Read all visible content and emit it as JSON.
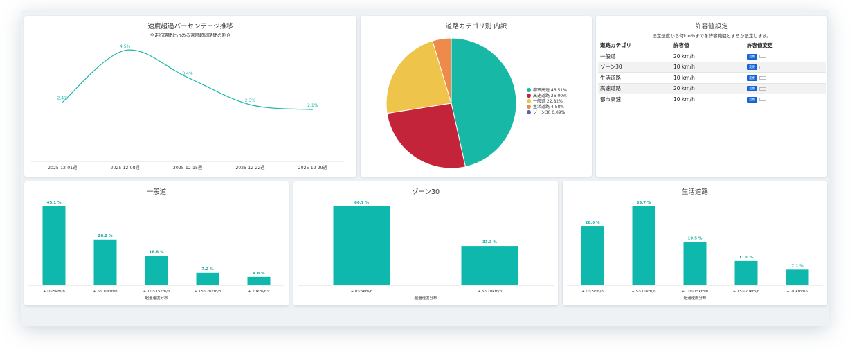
{
  "trend": {
    "title": "速度超過パーセンテージ推移",
    "subtitle": "全走行時間に占める速度超過時間の割合",
    "color": "#1ab8a8",
    "chart_data": {
      "type": "line",
      "x": [
        "2025-12-01週",
        "2025-12-08週",
        "2025-12-15週",
        "2025-12-22週",
        "2025-12-29週"
      ],
      "values": [
        2.4,
        4.5,
        3.4,
        2.3,
        2.1
      ],
      "labels": [
        "2.4%",
        "4.5%",
        "3.4%",
        "2.3%",
        "2.1%"
      ],
      "ylim": [
        0,
        5.0
      ]
    }
  },
  "pie": {
    "title": "道路カテゴリ別 内訳",
    "chart_data": {
      "type": "pie",
      "slices": [
        {
          "label": "都市高速 46.51%",
          "value": 46.51,
          "color": "#17b8a6"
        },
        {
          "label": "高速道路 26.00%",
          "value": 26.0,
          "color": "#c4243a"
        },
        {
          "label": "一般道 22.82%",
          "value": 22.82,
          "color": "#eec44a"
        },
        {
          "label": "生活道路 4.58%",
          "value": 4.58,
          "color": "#ee8a4a"
        },
        {
          "label": "ゾーン30 0.09%",
          "value": 0.09,
          "color": "#5664a8"
        }
      ]
    }
  },
  "tolerance": {
    "title": "許容値設定",
    "description": "法定速度から何km/hまでを許容範囲とするか設定します。",
    "headers": [
      "道路カテゴリ",
      "許容値",
      "許容値変更"
    ],
    "change_label": "変更",
    "rows": [
      {
        "category": "一般道",
        "value": "20 km/h"
      },
      {
        "category": "ゾーン30",
        "value": "10 km/h"
      },
      {
        "category": "生活道路",
        "value": "10 km/h"
      },
      {
        "category": "高速道路",
        "value": "20 km/h"
      },
      {
        "category": "都市高速",
        "value": "10 km/h"
      }
    ]
  },
  "bars": [
    {
      "title": "一般道",
      "xlabel": "超過速度分布",
      "color": "#0fb8ad",
      "chart_data": {
        "type": "bar",
        "categories": [
          "+ 0~5km/h",
          "+ 5~10km/h",
          "+ 10~15km/h",
          "+ 15~20km/h",
          "+ 20km/h~"
        ],
        "values": [
          45.1,
          26.2,
          16.8,
          7.2,
          4.8
        ],
        "labels": [
          "45.1 %",
          "26.2 %",
          "16.8 %",
          "7.2 %",
          "4.8 %"
        ]
      }
    },
    {
      "title": "ゾーン30",
      "xlabel": "超過速度分布",
      "color": "#0fb8ad",
      "chart_data": {
        "type": "bar",
        "categories": [
          "+ 0~5km/h",
          "+ 5~10km/h"
        ],
        "values": [
          66.7,
          33.3
        ],
        "labels": [
          "66.7 %",
          "33.3 %"
        ]
      }
    },
    {
      "title": "生活道路",
      "xlabel": "超過速度分布",
      "color": "#0fb8ad",
      "chart_data": {
        "type": "bar",
        "categories": [
          "+ 0~5km/h",
          "+ 5~10km/h",
          "+ 10~15km/h",
          "+ 15~20km/h",
          "+ 20km/h~"
        ],
        "values": [
          26.6,
          35.7,
          19.5,
          11.0,
          7.1
        ],
        "labels": [
          "26.6 %",
          "35.7 %",
          "19.5 %",
          "11.0 %",
          "7.1 %"
        ]
      }
    }
  ]
}
